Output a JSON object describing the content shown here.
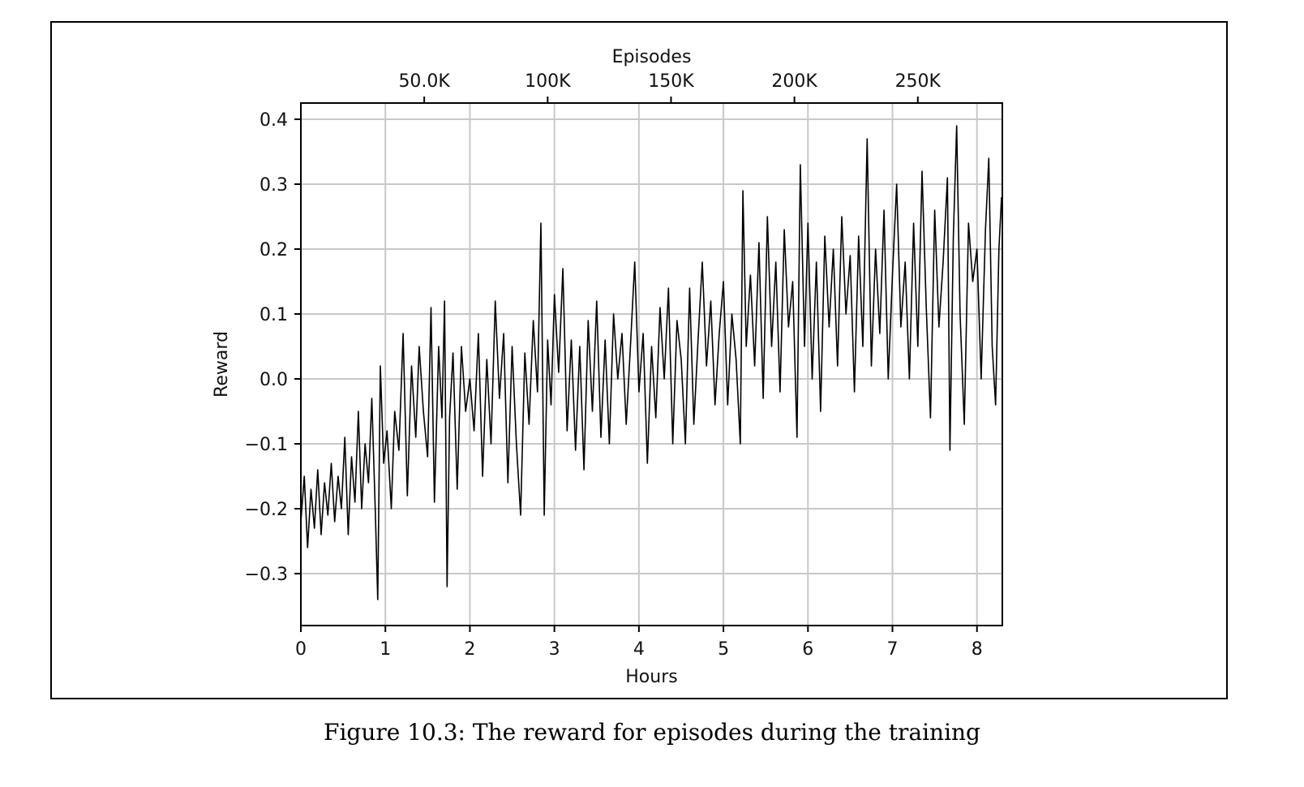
{
  "caption": "Figure 10.3: The reward for episodes during the training",
  "chart_data": {
    "type": "line",
    "title": "",
    "xlabel": "Hours",
    "ylabel": "Reward",
    "top_xlabel": "Episodes",
    "xlim": [
      0,
      8.3
    ],
    "ylim": [
      -0.38,
      0.425
    ],
    "grid": true,
    "line_color": "#000000",
    "grid_color": "#c8c8c8",
    "x_ticks": [
      0,
      1,
      2,
      3,
      4,
      5,
      6,
      7,
      8
    ],
    "x_tick_labels": [
      "0",
      "1",
      "2",
      "3",
      "4",
      "5",
      "6",
      "7",
      "8"
    ],
    "y_ticks": [
      -0.3,
      -0.2,
      -0.1,
      0.0,
      0.1,
      0.2,
      0.3,
      0.4
    ],
    "y_tick_labels": [
      "−0.3",
      "−0.2",
      "−0.1",
      "0.0",
      "0.1",
      "0.2",
      "0.3",
      "0.4"
    ],
    "top_ticks_hours": [
      1.46,
      2.92,
      4.38,
      5.84,
      7.3
    ],
    "top_tick_labels": [
      "50.0K",
      "100K",
      "150K",
      "200K",
      "250K"
    ],
    "series": [
      {
        "values": [
          [
            0.0,
            -0.22
          ],
          [
            0.04,
            -0.15
          ],
          [
            0.08,
            -0.26
          ],
          [
            0.12,
            -0.17
          ],
          [
            0.16,
            -0.23
          ],
          [
            0.2,
            -0.14
          ],
          [
            0.24,
            -0.24
          ],
          [
            0.28,
            -0.16
          ],
          [
            0.32,
            -0.21
          ],
          [
            0.36,
            -0.13
          ],
          [
            0.4,
            -0.22
          ],
          [
            0.44,
            -0.15
          ],
          [
            0.48,
            -0.2
          ],
          [
            0.52,
            -0.09
          ],
          [
            0.56,
            -0.24
          ],
          [
            0.6,
            -0.12
          ],
          [
            0.64,
            -0.19
          ],
          [
            0.68,
            -0.05
          ],
          [
            0.72,
            -0.2
          ],
          [
            0.76,
            -0.1
          ],
          [
            0.8,
            -0.16
          ],
          [
            0.84,
            -0.03
          ],
          [
            0.88,
            -0.2
          ],
          [
            0.91,
            -0.34
          ],
          [
            0.94,
            0.02
          ],
          [
            0.98,
            -0.13
          ],
          [
            1.02,
            -0.08
          ],
          [
            1.07,
            -0.2
          ],
          [
            1.11,
            -0.05
          ],
          [
            1.16,
            -0.11
          ],
          [
            1.21,
            0.07
          ],
          [
            1.26,
            -0.18
          ],
          [
            1.31,
            0.02
          ],
          [
            1.36,
            -0.09
          ],
          [
            1.4,
            0.05
          ],
          [
            1.45,
            -0.05
          ],
          [
            1.5,
            -0.12
          ],
          [
            1.54,
            0.11
          ],
          [
            1.58,
            -0.19
          ],
          [
            1.63,
            0.05
          ],
          [
            1.67,
            -0.06
          ],
          [
            1.7,
            0.12
          ],
          [
            1.73,
            -0.32
          ],
          [
            1.76,
            -0.06
          ],
          [
            1.8,
            0.04
          ],
          [
            1.85,
            -0.17
          ],
          [
            1.9,
            0.05
          ],
          [
            1.95,
            -0.05
          ],
          [
            2.0,
            0.0
          ],
          [
            2.05,
            -0.08
          ],
          [
            2.1,
            0.07
          ],
          [
            2.15,
            -0.15
          ],
          [
            2.2,
            0.03
          ],
          [
            2.25,
            -0.1
          ],
          [
            2.3,
            0.12
          ],
          [
            2.35,
            -0.03
          ],
          [
            2.4,
            0.07
          ],
          [
            2.45,
            -0.16
          ],
          [
            2.5,
            0.05
          ],
          [
            2.55,
            -0.1
          ],
          [
            2.6,
            -0.21
          ],
          [
            2.65,
            0.04
          ],
          [
            2.7,
            -0.07
          ],
          [
            2.75,
            0.09
          ],
          [
            2.8,
            -0.02
          ],
          [
            2.84,
            0.24
          ],
          [
            2.88,
            -0.21
          ],
          [
            2.92,
            0.06
          ],
          [
            2.96,
            -0.04
          ],
          [
            3.0,
            0.13
          ],
          [
            3.05,
            0.01
          ],
          [
            3.1,
            0.17
          ],
          [
            3.15,
            -0.08
          ],
          [
            3.2,
            0.06
          ],
          [
            3.25,
            -0.11
          ],
          [
            3.3,
            0.05
          ],
          [
            3.35,
            -0.14
          ],
          [
            3.4,
            0.09
          ],
          [
            3.45,
            -0.05
          ],
          [
            3.5,
            0.12
          ],
          [
            3.55,
            -0.09
          ],
          [
            3.6,
            0.06
          ],
          [
            3.65,
            -0.1
          ],
          [
            3.7,
            0.1
          ],
          [
            3.75,
            0.0
          ],
          [
            3.8,
            0.07
          ],
          [
            3.85,
            -0.07
          ],
          [
            3.9,
            0.05
          ],
          [
            3.95,
            0.18
          ],
          [
            4.0,
            -0.02
          ],
          [
            4.05,
            0.07
          ],
          [
            4.1,
            -0.13
          ],
          [
            4.15,
            0.05
          ],
          [
            4.2,
            -0.06
          ],
          [
            4.25,
            0.11
          ],
          [
            4.3,
            0.0
          ],
          [
            4.35,
            0.14
          ],
          [
            4.4,
            -0.1
          ],
          [
            4.45,
            0.09
          ],
          [
            4.5,
            0.03
          ],
          [
            4.55,
            -0.1
          ],
          [
            4.6,
            0.14
          ],
          [
            4.65,
            -0.07
          ],
          [
            4.7,
            0.06
          ],
          [
            4.75,
            0.18
          ],
          [
            4.8,
            0.02
          ],
          [
            4.85,
            0.12
          ],
          [
            4.9,
            -0.04
          ],
          [
            4.95,
            0.07
          ],
          [
            5.0,
            0.15
          ],
          [
            5.05,
            -0.04
          ],
          [
            5.1,
            0.1
          ],
          [
            5.15,
            0.03
          ],
          [
            5.2,
            -0.1
          ],
          [
            5.23,
            0.29
          ],
          [
            5.27,
            0.05
          ],
          [
            5.32,
            0.16
          ],
          [
            5.37,
            0.02
          ],
          [
            5.42,
            0.21
          ],
          [
            5.47,
            -0.03
          ],
          [
            5.52,
            0.25
          ],
          [
            5.57,
            0.05
          ],
          [
            5.62,
            0.18
          ],
          [
            5.67,
            -0.02
          ],
          [
            5.72,
            0.23
          ],
          [
            5.77,
            0.08
          ],
          [
            5.82,
            0.15
          ],
          [
            5.87,
            -0.09
          ],
          [
            5.91,
            0.33
          ],
          [
            5.96,
            0.05
          ],
          [
            6.0,
            0.24
          ],
          [
            6.05,
            0.0
          ],
          [
            6.1,
            0.18
          ],
          [
            6.15,
            -0.05
          ],
          [
            6.2,
            0.22
          ],
          [
            6.25,
            0.08
          ],
          [
            6.3,
            0.2
          ],
          [
            6.35,
            0.02
          ],
          [
            6.4,
            0.25
          ],
          [
            6.45,
            0.1
          ],
          [
            6.5,
            0.19
          ],
          [
            6.55,
            -0.02
          ],
          [
            6.6,
            0.22
          ],
          [
            6.65,
            0.05
          ],
          [
            6.7,
            0.37
          ],
          [
            6.75,
            0.02
          ],
          [
            6.8,
            0.2
          ],
          [
            6.85,
            0.07
          ],
          [
            6.9,
            0.26
          ],
          [
            6.95,
            0.0
          ],
          [
            7.0,
            0.16
          ],
          [
            7.05,
            0.3
          ],
          [
            7.1,
            0.08
          ],
          [
            7.15,
            0.18
          ],
          [
            7.2,
            0.0
          ],
          [
            7.25,
            0.24
          ],
          [
            7.3,
            0.05
          ],
          [
            7.35,
            0.32
          ],
          [
            7.4,
            0.11
          ],
          [
            7.45,
            -0.06
          ],
          [
            7.5,
            0.26
          ],
          [
            7.55,
            0.08
          ],
          [
            7.6,
            0.18
          ],
          [
            7.65,
            0.31
          ],
          [
            7.68,
            -0.11
          ],
          [
            7.72,
            0.22
          ],
          [
            7.76,
            0.39
          ],
          [
            7.8,
            0.1
          ],
          [
            7.85,
            -0.07
          ],
          [
            7.9,
            0.24
          ],
          [
            7.95,
            0.15
          ],
          [
            8.0,
            0.2
          ],
          [
            8.05,
            0.0
          ],
          [
            8.1,
            0.23
          ],
          [
            8.14,
            0.34
          ],
          [
            8.18,
            0.05
          ],
          [
            8.22,
            -0.04
          ],
          [
            8.26,
            0.2
          ],
          [
            8.29,
            0.28
          ]
        ]
      }
    ]
  }
}
